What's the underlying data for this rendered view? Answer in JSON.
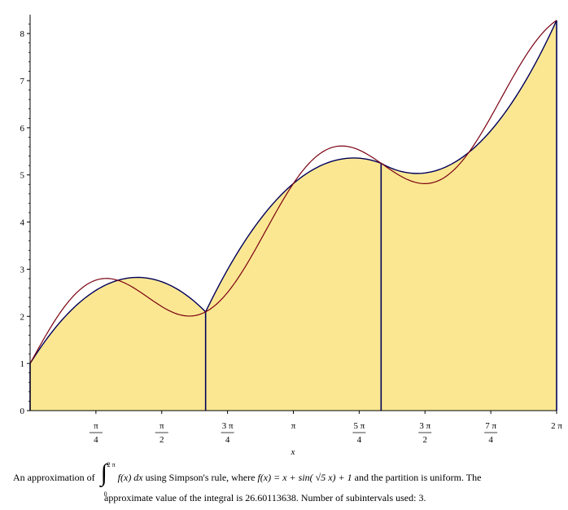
{
  "chart_data": {
    "type": "area",
    "title": "",
    "xlabel": "x",
    "ylabel": "",
    "xlim": [
      0,
      6.283185
    ],
    "ylim": [
      0,
      8.4
    ],
    "grid": false,
    "y_ticks": [
      0,
      1,
      2,
      3,
      4,
      5,
      6,
      7,
      8
    ],
    "x_ticks": [
      {
        "value": 0.785398,
        "num": "π",
        "den": "4"
      },
      {
        "value": 1.570796,
        "num": "π",
        "den": "2"
      },
      {
        "value": 2.356194,
        "num": "3 π",
        "den": "4"
      },
      {
        "value": 3.141593,
        "num": "π",
        "den": ""
      },
      {
        "value": 3.926991,
        "num": "5 π",
        "den": "4"
      },
      {
        "value": 4.712389,
        "num": "3 π",
        "den": "2"
      },
      {
        "value": 5.497787,
        "num": "7 π",
        "den": "4"
      },
      {
        "value": 6.283185,
        "num": "2 π",
        "den": ""
      }
    ],
    "function": "x + sin(sqrt(5) x) + 1",
    "partition_points": [
      0,
      2.094395,
      4.18879,
      6.283185
    ],
    "partition_values": [
      1.0,
      2.088,
      5.253,
      8.283
    ],
    "approximation_color": "#00005a",
    "function_color": "#7a0010",
    "fill_color": "#fbe792"
  },
  "caption": {
    "line1_start": "An approximation of",
    "upper_limit": "2 π",
    "lower_limit": "0",
    "integrand": "f(x)  dx",
    "line1_middle": " using Simpson's rule, where ",
    "definition": "f(x) = x + sin( √5  x) + 1",
    "line1_end": " and the partition is uniform.  The",
    "line2": "approximate value of the integral is 26.60113638.  Number of subintervals used: 3."
  }
}
